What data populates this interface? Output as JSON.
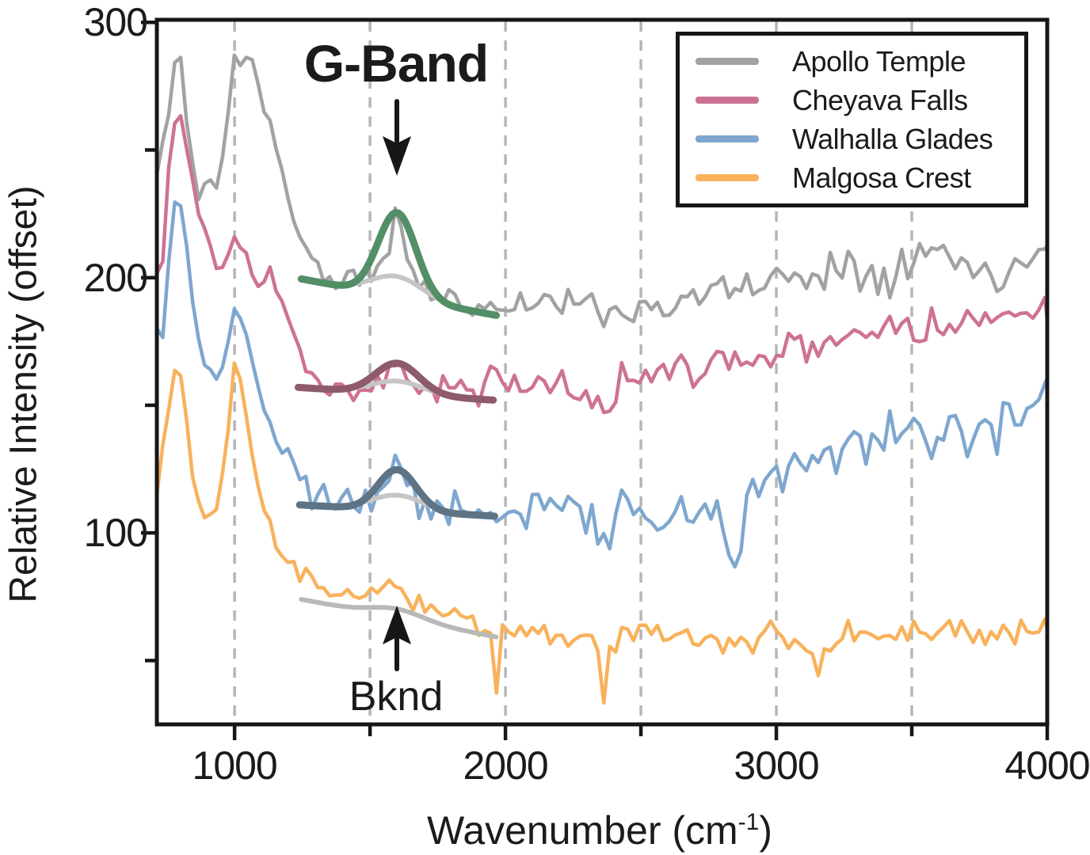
{
  "figure": {
    "ylabel": "Relative Intensity (offset)",
    "xlabel_prefix": "Wavenumber (cm",
    "xlabel_sup": "-1",
    "xlabel_suffix": ")"
  },
  "annotations": {
    "gband": {
      "text": "G-Band"
    },
    "bknd": {
      "text": "Bknd"
    }
  },
  "legend": {
    "position": "top-right",
    "items": [
      {
        "label": "Apollo Temple",
        "color": "#a2a2a2"
      },
      {
        "label": "Cheyava Falls",
        "color": "#ce7295"
      },
      {
        "label": "Walhalla Glades",
        "color": "#7ea7cf"
      },
      {
        "label": "Malgosa Crest",
        "color": "#f8b25c"
      }
    ]
  },
  "chart_data": {
    "type": "line",
    "title": "",
    "xlabel": "Wavenumber (cm-1)",
    "ylabel": "Relative Intensity (offset)",
    "xlim": [
      713,
      4000
    ],
    "ylim": [
      25,
      301
    ],
    "grid": "vertical-dashed",
    "gridlines_x": [
      1000,
      1500,
      2000,
      2500,
      3000,
      3500
    ],
    "x_ticks": [
      {
        "value": 1000,
        "label": "1000"
      },
      {
        "value": 1500,
        "label": ""
      },
      {
        "value": 2000,
        "label": "2000"
      },
      {
        "value": 2500,
        "label": ""
      },
      {
        "value": 3000,
        "label": "3000"
      },
      {
        "value": 3500,
        "label": ""
      },
      {
        "value": 4000,
        "label": "4000"
      }
    ],
    "y_ticks": [
      {
        "value": 50,
        "label": ""
      },
      {
        "value": 100,
        "label": "100"
      },
      {
        "value": 150,
        "label": ""
      },
      {
        "value": 200,
        "label": "200"
      },
      {
        "value": 250,
        "label": ""
      },
      {
        "value": 300,
        "label": "300"
      }
    ],
    "series": [
      {
        "name": "Apollo Temple",
        "color": "#a2a2a2",
        "width": 4.5,
        "anchors": [
          [
            713,
            240,
            2
          ],
          [
            755,
            263,
            2
          ],
          [
            792,
            295,
            1
          ],
          [
            830,
            256,
            2
          ],
          [
            866,
            231,
            2
          ],
          [
            905,
            238,
            2
          ],
          [
            940,
            236,
            2
          ],
          [
            972,
            260,
            1
          ],
          [
            1000,
            288,
            1
          ],
          [
            1022,
            282,
            1
          ],
          [
            1055,
            290,
            1
          ],
          [
            1085,
            277,
            1
          ],
          [
            1115,
            263,
            2
          ],
          [
            1142,
            258,
            2
          ],
          [
            1175,
            241,
            2
          ],
          [
            1230,
            219,
            3
          ],
          [
            1285,
            206,
            3
          ],
          [
            1360,
            199,
            4
          ],
          [
            1460,
            199,
            4
          ],
          [
            1540,
            203,
            3
          ],
          [
            1575,
            212,
            2
          ],
          [
            1600,
            232,
            2
          ],
          [
            1625,
            213,
            2
          ],
          [
            1665,
            199,
            3
          ],
          [
            1730,
            193,
            4
          ],
          [
            1810,
            191,
            4
          ],
          [
            1900,
            189,
            4
          ],
          [
            2000,
            189,
            4
          ],
          [
            2120,
            191,
            4
          ],
          [
            2250,
            190,
            4
          ],
          [
            2380,
            187,
            4
          ],
          [
            2500,
            188,
            4
          ],
          [
            2620,
            190,
            4
          ],
          [
            2750,
            194,
            4
          ],
          [
            2900,
            197,
            5
          ],
          [
            3000,
            199,
            5
          ],
          [
            3120,
            202,
            5
          ],
          [
            3250,
            205,
            6
          ],
          [
            3380,
            203,
            6
          ],
          [
            3500,
            208,
            6
          ],
          [
            3620,
            211,
            6
          ],
          [
            3720,
            203,
            5
          ],
          [
            3820,
            202,
            5
          ],
          [
            3920,
            206,
            5
          ],
          [
            3970,
            214,
            4
          ],
          [
            4000,
            217,
            3
          ]
        ]
      },
      {
        "name": "Cheyava Falls",
        "color": "#ce7295",
        "width": 4.5,
        "anchors": [
          [
            713,
            203,
            3
          ],
          [
            728,
            193,
            2
          ],
          [
            755,
            242,
            2
          ],
          [
            790,
            271,
            1
          ],
          [
            822,
            251,
            2
          ],
          [
            860,
            227,
            2
          ],
          [
            900,
            214,
            2
          ],
          [
            938,
            205,
            2
          ],
          [
            972,
            209,
            2
          ],
          [
            1005,
            217,
            1
          ],
          [
            1035,
            211,
            2
          ],
          [
            1068,
            200,
            2
          ],
          [
            1100,
            196,
            2
          ],
          [
            1135,
            203,
            2
          ],
          [
            1170,
            193,
            2
          ],
          [
            1215,
            179,
            3
          ],
          [
            1265,
            164,
            3
          ],
          [
            1330,
            158,
            4
          ],
          [
            1410,
            156,
            4
          ],
          [
            1500,
            158,
            4
          ],
          [
            1565,
            163,
            3
          ],
          [
            1600,
            168,
            3
          ],
          [
            1640,
            159,
            3
          ],
          [
            1705,
            156,
            4
          ],
          [
            1800,
            155,
            5
          ],
          [
            1905,
            157,
            5
          ],
          [
            1950,
            166,
            4
          ],
          [
            2010,
            156,
            5
          ],
          [
            2120,
            157,
            5
          ],
          [
            2240,
            158,
            5
          ],
          [
            2330,
            152,
            5
          ],
          [
            2360,
            146,
            4
          ],
          [
            2420,
            158,
            5
          ],
          [
            2520,
            161,
            5
          ],
          [
            2640,
            164,
            5
          ],
          [
            2760,
            166,
            5
          ],
          [
            2880,
            169,
            5
          ],
          [
            3000,
            172,
            5
          ],
          [
            3120,
            175,
            5
          ],
          [
            3240,
            177,
            5
          ],
          [
            3360,
            179,
            5
          ],
          [
            3480,
            181,
            5
          ],
          [
            3600,
            183,
            5
          ],
          [
            3720,
            182,
            5
          ],
          [
            3840,
            184,
            5
          ],
          [
            3940,
            186,
            4
          ],
          [
            3975,
            191,
            3
          ],
          [
            4000,
            186,
            3
          ]
        ]
      },
      {
        "name": "Walhalla Glades",
        "color": "#7ea7cf",
        "width": 4.5,
        "anchors": [
          [
            713,
            180,
            2
          ],
          [
            730,
            168,
            2
          ],
          [
            752,
            204,
            2
          ],
          [
            790,
            238,
            1
          ],
          [
            824,
            210,
            2
          ],
          [
            860,
            179,
            2
          ],
          [
            900,
            163,
            2
          ],
          [
            938,
            158,
            2
          ],
          [
            972,
            173,
            2
          ],
          [
            1005,
            191,
            2
          ],
          [
            1038,
            179,
            2
          ],
          [
            1072,
            163,
            2
          ],
          [
            1108,
            150,
            3
          ],
          [
            1150,
            138,
            3
          ],
          [
            1205,
            126,
            3
          ],
          [
            1265,
            117,
            4
          ],
          [
            1345,
            113,
            5
          ],
          [
            1430,
            111,
            5
          ],
          [
            1505,
            113,
            5
          ],
          [
            1562,
            119,
            4
          ],
          [
            1600,
            129,
            3
          ],
          [
            1642,
            117,
            4
          ],
          [
            1705,
            110,
            6
          ],
          [
            1810,
            108,
            7
          ],
          [
            1910,
            107,
            7
          ],
          [
            2010,
            109,
            7
          ],
          [
            2120,
            111,
            7
          ],
          [
            2230,
            112,
            7
          ],
          [
            2330,
            105,
            7
          ],
          [
            2360,
            93,
            5
          ],
          [
            2420,
            110,
            7
          ],
          [
            2520,
            108,
            7
          ],
          [
            2560,
            96,
            5
          ],
          [
            2620,
            111,
            7
          ],
          [
            2720,
            112,
            7
          ],
          [
            2810,
            103,
            7
          ],
          [
            2852,
            88,
            4
          ],
          [
            2905,
            116,
            6
          ],
          [
            3000,
            124,
            6
          ],
          [
            3110,
            128,
            6
          ],
          [
            3220,
            131,
            7
          ],
          [
            3330,
            134,
            7
          ],
          [
            3440,
            135,
            7
          ],
          [
            3550,
            138,
            7
          ],
          [
            3660,
            140,
            7
          ],
          [
            3770,
            139,
            7
          ],
          [
            3880,
            142,
            7
          ],
          [
            3950,
            149,
            5
          ],
          [
            4000,
            157,
            4
          ]
        ]
      },
      {
        "name": "Malgosa Crest",
        "color": "#f8b25c",
        "width": 4.5,
        "anchors": [
          [
            713,
            117,
            3
          ],
          [
            752,
            146,
            2
          ],
          [
            790,
            171,
            1
          ],
          [
            824,
            141,
            2
          ],
          [
            860,
            114,
            2
          ],
          [
            900,
            104,
            2
          ],
          [
            938,
            109,
            2
          ],
          [
            972,
            136,
            2
          ],
          [
            1005,
            172,
            1
          ],
          [
            1038,
            149,
            2
          ],
          [
            1072,
            125,
            2
          ],
          [
            1110,
            110,
            3
          ],
          [
            1152,
            98,
            3
          ],
          [
            1205,
            88,
            3
          ],
          [
            1265,
            81,
            3
          ],
          [
            1330,
            78,
            3
          ],
          [
            1410,
            76,
            3
          ],
          [
            1500,
            75,
            3
          ],
          [
            1568,
            79,
            2
          ],
          [
            1600,
            81,
            2
          ],
          [
            1650,
            74,
            3
          ],
          [
            1710,
            71,
            3
          ],
          [
            1810,
            68,
            4
          ],
          [
            1905,
            64,
            4
          ],
          [
            1945,
            60,
            3
          ],
          [
            1962,
            30,
            1
          ],
          [
            1985,
            60,
            3
          ],
          [
            2080,
            62,
            4
          ],
          [
            2180,
            60,
            4
          ],
          [
            2280,
            61,
            4
          ],
          [
            2340,
            55,
            3
          ],
          [
            2357,
            26,
            1
          ],
          [
            2385,
            58,
            3
          ],
          [
            2480,
            61,
            4
          ],
          [
            2580,
            60,
            4
          ],
          [
            2680,
            59,
            4
          ],
          [
            2780,
            60,
            4
          ],
          [
            2880,
            58,
            4
          ],
          [
            2980,
            60,
            4
          ],
          [
            3080,
            59,
            4
          ],
          [
            3130,
            48,
            3
          ],
          [
            3150,
            39,
            2
          ],
          [
            3180,
            55,
            3
          ],
          [
            3280,
            61,
            4
          ],
          [
            3380,
            60,
            4
          ],
          [
            3480,
            59,
            4
          ],
          [
            3580,
            62,
            4
          ],
          [
            3680,
            60,
            4
          ],
          [
            3780,
            61,
            4
          ],
          [
            3880,
            60,
            4
          ],
          [
            3950,
            62,
            3
          ],
          [
            4000,
            64,
            3
          ]
        ]
      }
    ],
    "background_fits": [
      {
        "name": "Apollo Temple background",
        "color": "#c6c6c6",
        "width": 6,
        "x0": 1246,
        "x1": 1977,
        "base0": 199.5,
        "base1": 185,
        "center": 1600,
        "amplitude": 8,
        "sigma": 95
      },
      {
        "name": "Cheyava Falls background",
        "color": "#c6c6c6",
        "width": 6,
        "x0": 1235,
        "x1": 1958,
        "base0": 157,
        "base1": 152,
        "center": 1600,
        "amplitude": 5,
        "sigma": 95
      },
      {
        "name": "Walhalla Glades background",
        "color": "#c6c6c6",
        "width": 6,
        "x0": 1240,
        "x1": 1970,
        "base0": 111,
        "base1": 106.5,
        "center": 1600,
        "amplitude": 6,
        "sigma": 95
      },
      {
        "name": "Malgosa Crest background (Bknd)",
        "color": "#b9b9b9",
        "width": 6,
        "x0": 1246,
        "x1": 1977,
        "base0": 74,
        "base1": 59,
        "center": 1600,
        "amplitude": 3.5,
        "sigma": 95
      }
    ],
    "gband_fits": [
      {
        "name": "Apollo Temple G-Band fit",
        "color": "#528e66",
        "width": 9,
        "x0": 1246,
        "x1": 1977,
        "base0": 199.5,
        "base1": 185,
        "center": 1600,
        "amplitude": 33,
        "sigma": 70
      },
      {
        "name": "Cheyava Falls G-Band fit",
        "color": "#8e5a6e",
        "width": 9,
        "x0": 1235,
        "x1": 1958,
        "base0": 157,
        "base1": 152,
        "center": 1600,
        "amplitude": 12,
        "sigma": 80
      },
      {
        "name": "Walhalla Glades G-Band fit",
        "color": "#5e7384",
        "width": 9,
        "x0": 1240,
        "x1": 1970,
        "base0": 111,
        "base1": 106.5,
        "center": 1600,
        "amplitude": 16,
        "sigma": 70
      }
    ]
  }
}
